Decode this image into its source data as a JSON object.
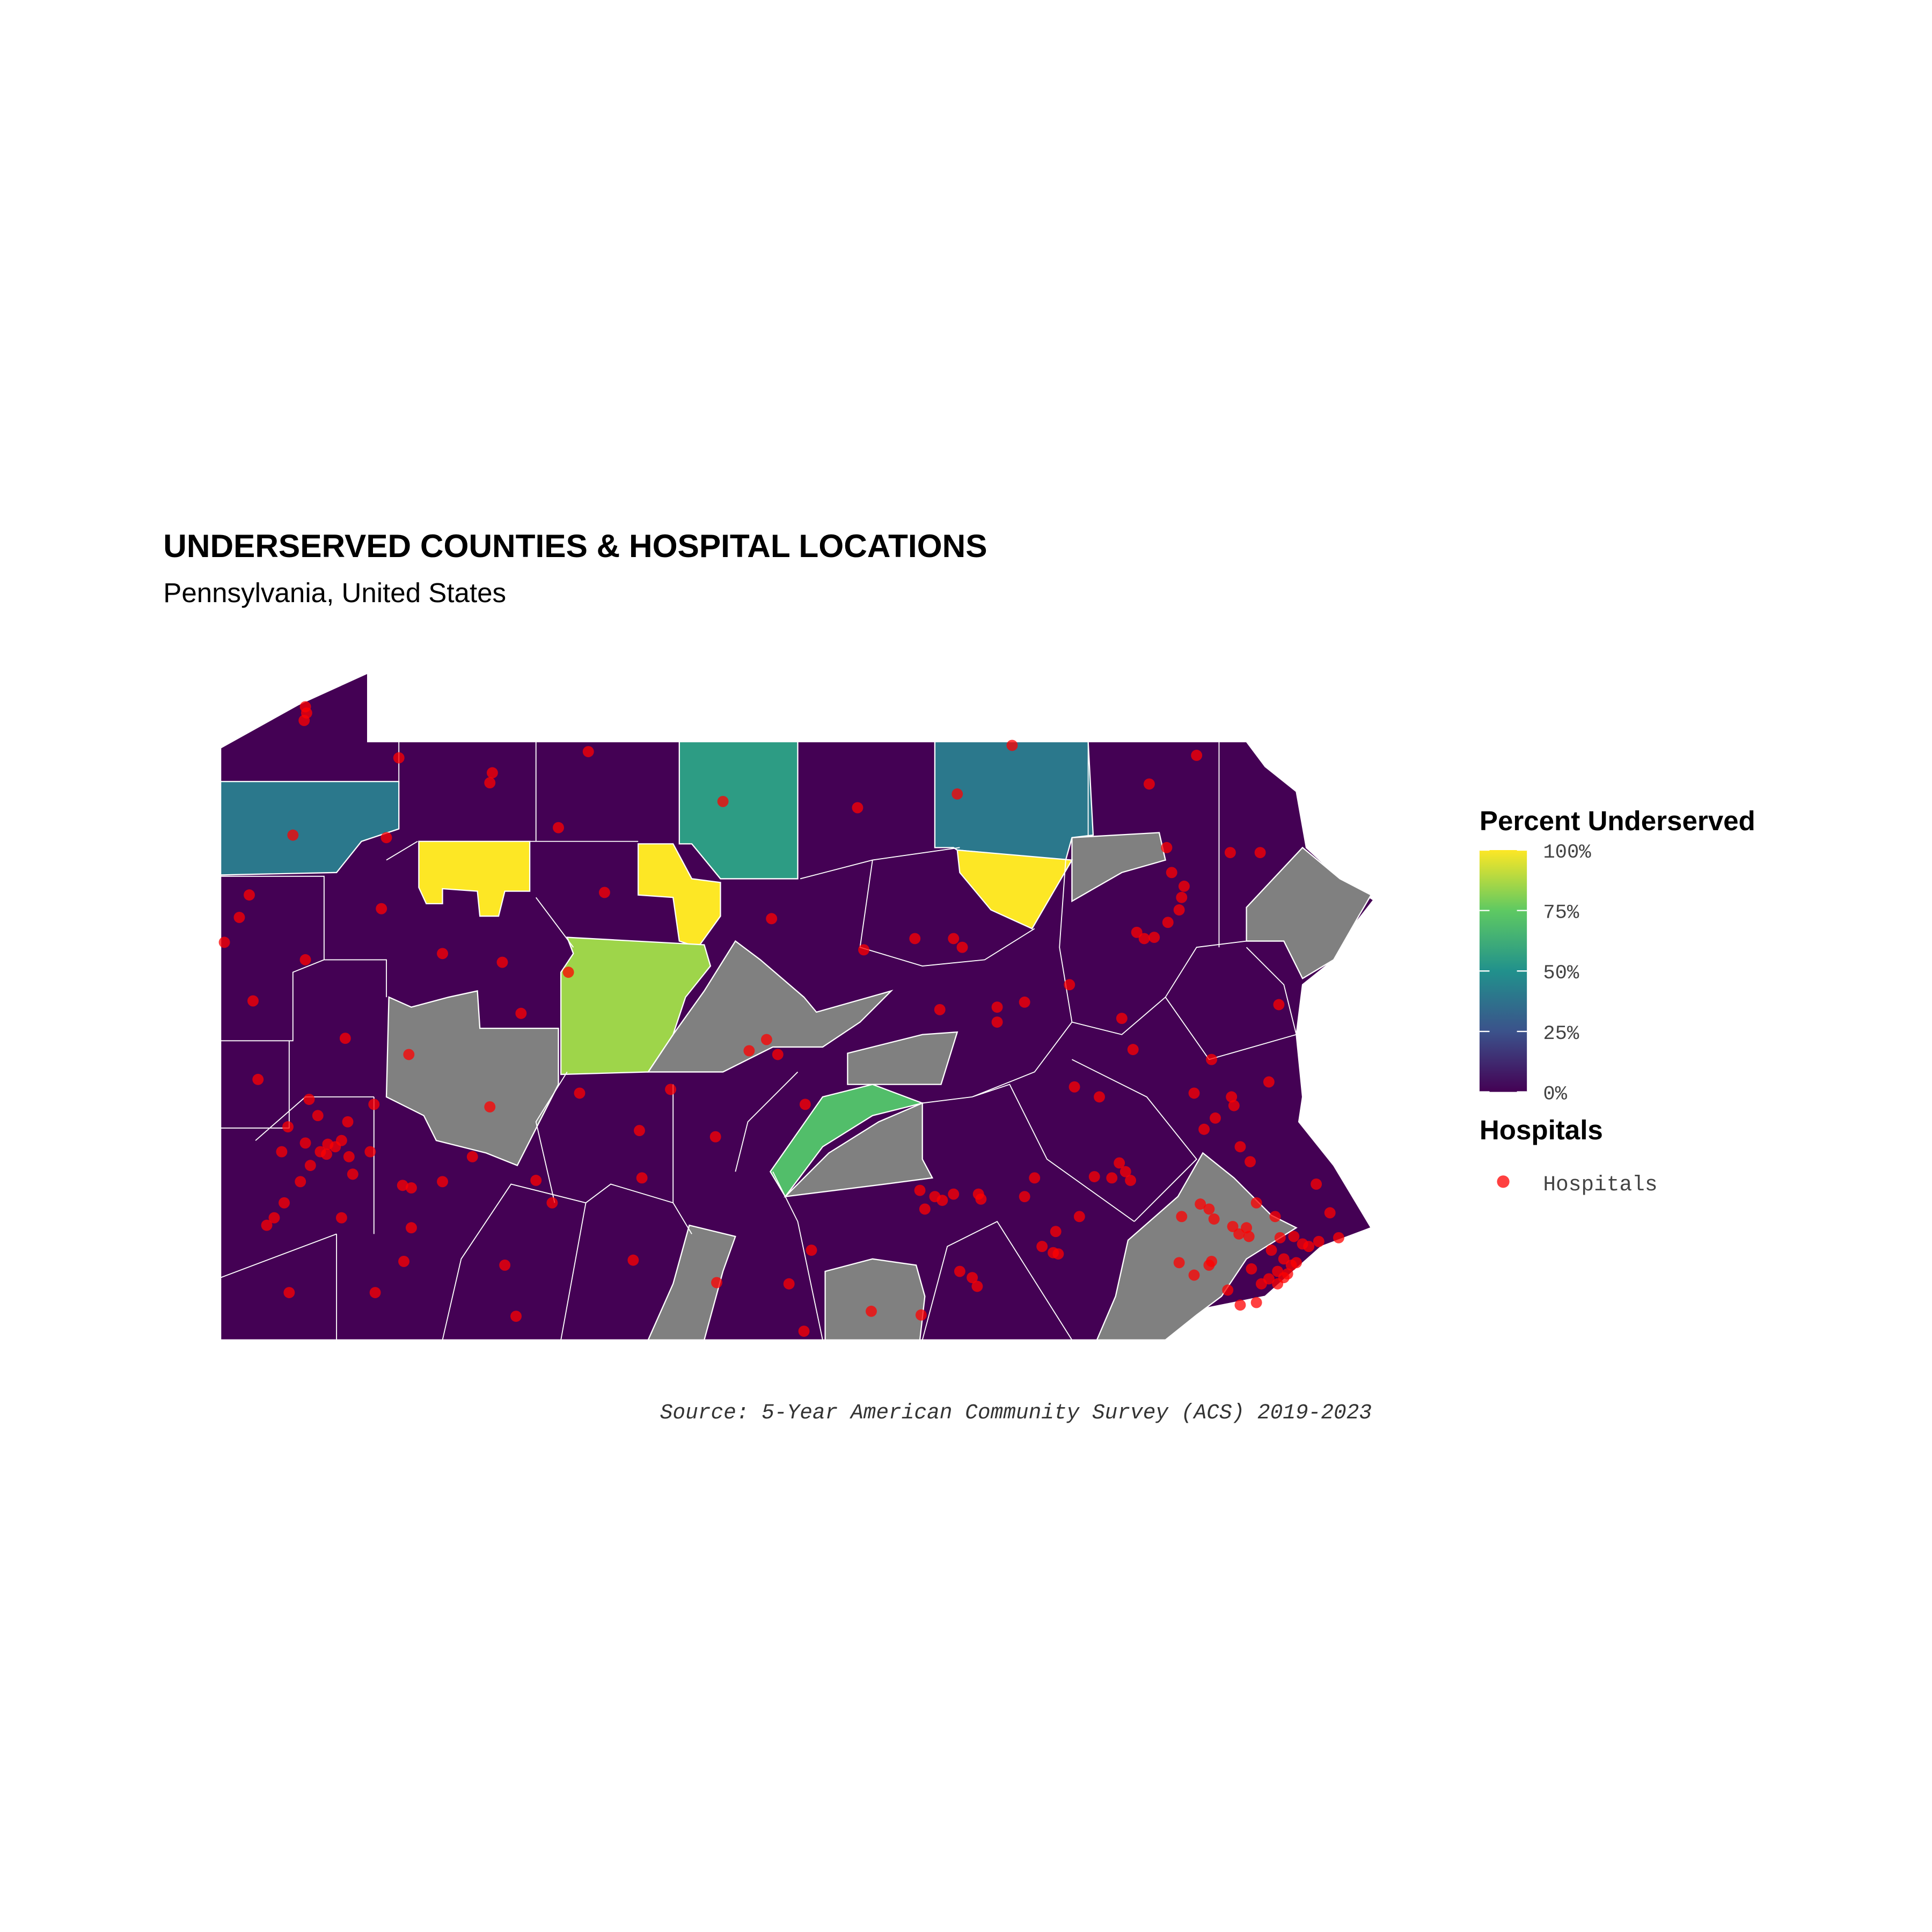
{
  "header": {
    "title": "UNDERSERVED COUNTIES & HOSPITAL LOCATIONS",
    "subtitle": "Pennsylvania, United States"
  },
  "legend": {
    "title": "Percent Underserved",
    "limits": [
      0,
      100
    ],
    "ticks": [
      {
        "value": 0,
        "label": "0%"
      },
      {
        "value": 25,
        "label": "25%"
      },
      {
        "value": 50,
        "label": "50%"
      },
      {
        "value": 75,
        "label": "75%"
      },
      {
        "value": 100,
        "label": "100%"
      }
    ]
  },
  "points_legend": {
    "title": "Hospitals",
    "label": "Hospitals"
  },
  "counties": [
    {
      "value": 40
    },
    {
      "value": 100
    },
    {
      "value": 100
    },
    {
      "value": 55
    },
    {
      "value": 40
    },
    {
      "value": 100
    },
    {
      "value": 85
    },
    {
      "value": 70
    }
  ],
  "caption": "Source: 5-Year American Community Survey (ACS) 2019-2023"
}
